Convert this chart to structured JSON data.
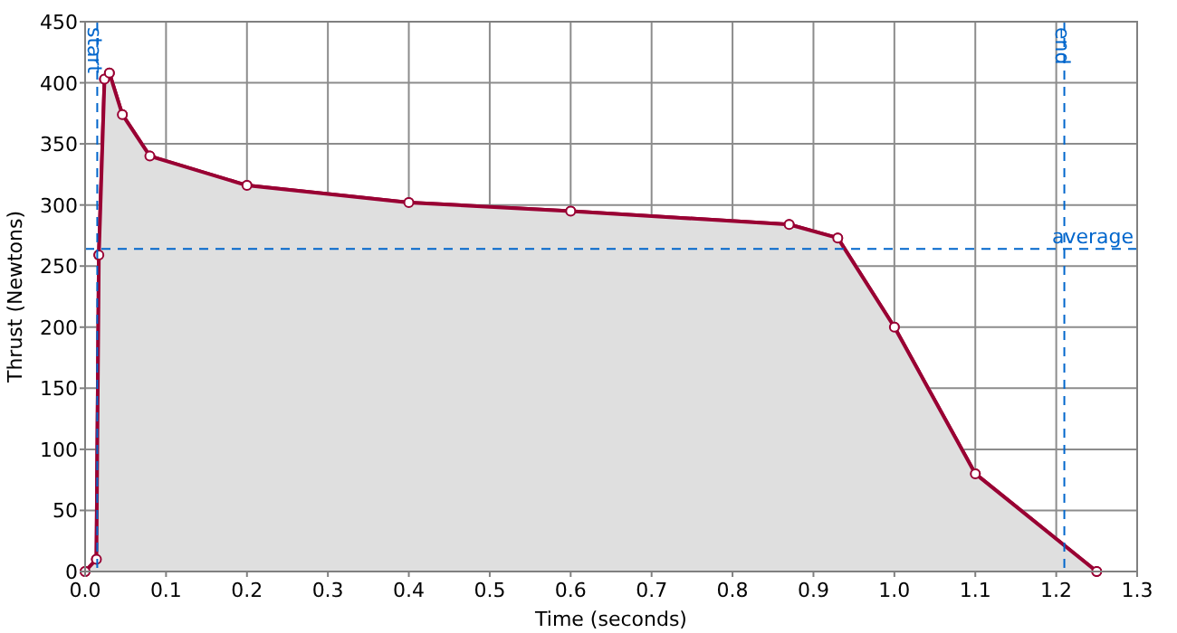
{
  "chart_data": {
    "type": "area",
    "xlabel": "Time (seconds)",
    "ylabel": "Thrust (Newtons)",
    "x": [
      0,
      0.014,
      0.017,
      0.024,
      0.03,
      0.046,
      0.08,
      0.2,
      0.4,
      0.6,
      0.87,
      0.93,
      1.0,
      1.1,
      1.25
    ],
    "series": [
      {
        "color": "#990033",
        "values": [
          0,
          10,
          259,
          403,
          408,
          374,
          340,
          316,
          302,
          295,
          284,
          273,
          200,
          80,
          0
        ]
      }
    ],
    "xlim": [
      0,
      1.3
    ],
    "xticks": [
      {
        "value": 0,
        "label": "0.0"
      },
      0.1,
      0.2,
      0.3,
      0.4,
      0.5,
      0.6,
      0.7,
      0.8,
      0.9,
      {
        "value": 1,
        "label": "1.0"
      },
      1.1,
      1.2,
      1.3
    ],
    "ylim": [
      0,
      450
    ],
    "yticks": [
      0,
      50,
      100,
      150,
      200,
      250,
      300,
      350,
      400,
      450
    ],
    "ref_lines": [
      {
        "axis": "x",
        "value": 0.015,
        "label": "start",
        "color": "#0066cc",
        "line_style": "dashed"
      },
      {
        "axis": "x",
        "value": 1.21,
        "label": "end",
        "color": "#0066cc",
        "line_style": "dashed"
      },
      {
        "axis": "y",
        "value": 264,
        "label": "average",
        "color": "#0066cc",
        "line_style": "dashed"
      }
    ],
    "grid": true,
    "marker": "circle",
    "line_style": "solid"
  }
}
